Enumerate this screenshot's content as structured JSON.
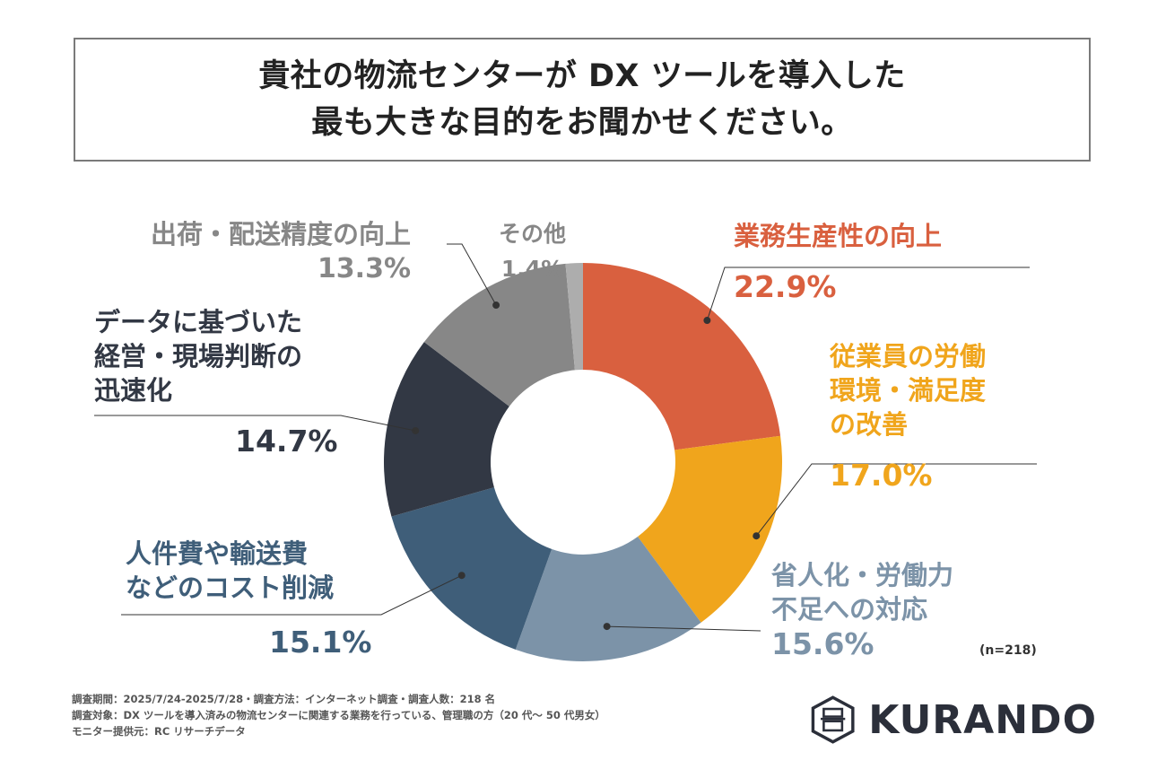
{
  "title": {
    "line1": "貴社の物流センターが DX ツールを導入した",
    "line2": "最も大きな目的をお聞かせください。"
  },
  "chart_data": {
    "type": "pie",
    "donut": true,
    "start_angle_deg": 0,
    "direction": "clockwise",
    "slices": [
      {
        "name_lines": [
          "業務生産性の向上"
        ],
        "value": 22.9,
        "label": "22.9%",
        "color": "#d9603f"
      },
      {
        "name_lines": [
          "従業員の労働",
          "環境・満足度",
          "の改善"
        ],
        "value": 17.0,
        "label": "17.0%",
        "color": "#f0a51c"
      },
      {
        "name_lines": [
          "省人化・労働力",
          "不足への対応"
        ],
        "value": 15.6,
        "label": "15.6%",
        "color": "#7c93a8"
      },
      {
        "name_lines": [
          "人件費や輸送費",
          "などのコスト削減"
        ],
        "value": 15.1,
        "label": "15.1%",
        "color": "#3f5e79"
      },
      {
        "name_lines": [
          "データに基づいた",
          "経営・現場判断の",
          "迅速化"
        ],
        "value": 14.7,
        "label": "14.7%",
        "color": "#323844"
      },
      {
        "name_lines": [
          "出荷・配送精度の向上"
        ],
        "value": 13.3,
        "label": "13.3%",
        "color": "#878787"
      },
      {
        "name_lines": [
          "その他"
        ],
        "value": 1.4,
        "label": "1.4%",
        "color": "#adadad"
      }
    ],
    "label_colors": {
      "label_0": "#d9603f",
      "label_1": "#f0a51c",
      "label_2": "#7c93a8",
      "label_3": "#3f5e79",
      "label_4": "#323844",
      "label_5": "#878787",
      "label_6": "#878787"
    }
  },
  "sample_note": "(n=218)",
  "footer": {
    "line1": "調査期間：2025/7/24-2025/7/28・調査方法：インターネット調査・調査人数：218 名",
    "line2": "調査対象：DX ツールを導入済みの物流センターに関連する業務を行っている、管理職の方（20 代〜 50 代男女）",
    "line3": "モニター提供元：RC リサーチデータ"
  },
  "logo": {
    "text": "KURANDO",
    "icon": "kurando-emblem-icon"
  }
}
